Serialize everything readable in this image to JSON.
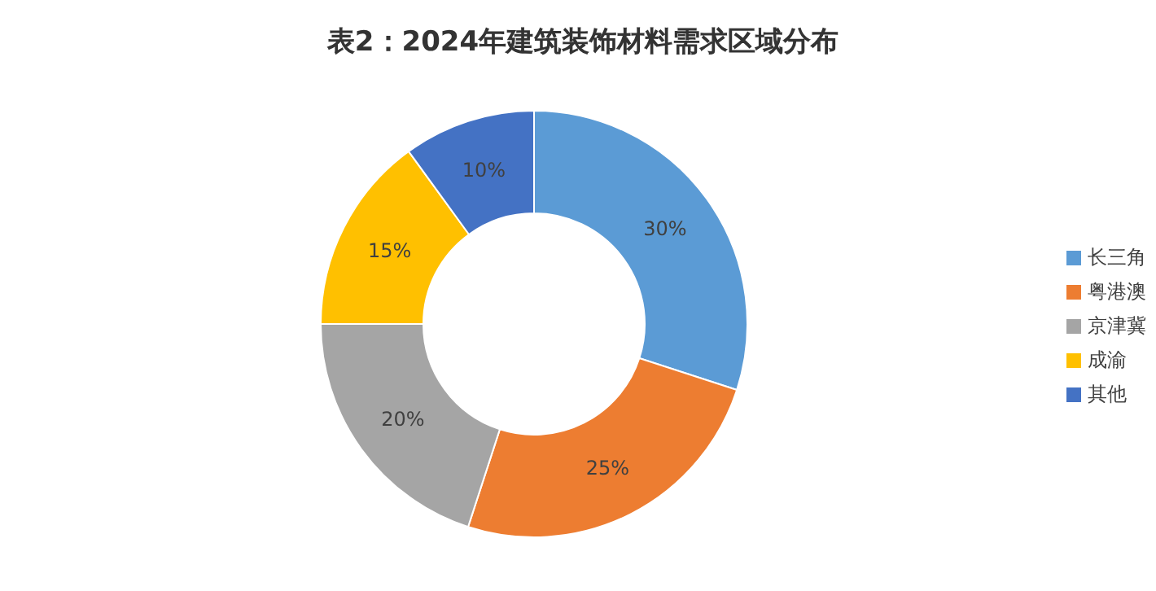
{
  "chart_data": {
    "type": "donut",
    "title": "表2：2024年建筑装饰材料需求区域分布",
    "categories": [
      "长三角",
      "粤港澳",
      "京津冀",
      "成渝",
      "其他"
    ],
    "values": [
      30,
      25,
      20,
      15,
      10
    ],
    "value_labels": [
      "30%",
      "25%",
      "20%",
      "15%",
      "10%"
    ],
    "colors": [
      "#5b9bd5",
      "#ed7d31",
      "#a5a5a5",
      "#ffc000",
      "#4472c4"
    ],
    "legend": "right"
  }
}
